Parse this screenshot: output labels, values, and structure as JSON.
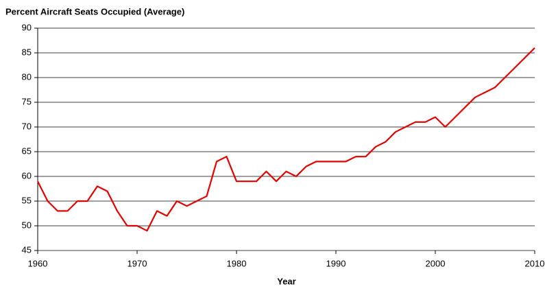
{
  "chart_data": {
    "type": "line",
    "title": "Percent Aircraft Seats Occupied (Average)",
    "x_label": "Year",
    "x": [
      1960,
      1961,
      1962,
      1963,
      1964,
      1965,
      1966,
      1967,
      1968,
      1969,
      1970,
      1971,
      1972,
      1973,
      1974,
      1975,
      1976,
      1977,
      1978,
      1979,
      1980,
      1981,
      1982,
      1983,
      1984,
      1985,
      1986,
      1987,
      1988,
      1989,
      1990,
      1991,
      1992,
      1993,
      1994,
      1995,
      1996,
      1997,
      1998,
      1999,
      2000,
      2001,
      2002,
      2003,
      2004,
      2005,
      2006,
      2007,
      2008,
      2009,
      2010
    ],
    "series": [
      {
        "color": "#e00000",
        "values": [
          59,
          55,
          53,
          53,
          55,
          55,
          58,
          57,
          53,
          50,
          50,
          49,
          53,
          52,
          55,
          54,
          55,
          56,
          63,
          64,
          59,
          59,
          59,
          61,
          59,
          61,
          60,
          62,
          63,
          63,
          63,
          63,
          64,
          64,
          66,
          67,
          69,
          70,
          71,
          71,
          72,
          70,
          72,
          74,
          76,
          77,
          78,
          80,
          82,
          84,
          86
        ]
      }
    ],
    "xlim": [
      1960,
      2010
    ],
    "xticks": [
      1960,
      1970,
      1980,
      1990,
      2000,
      2010
    ],
    "ylim": [
      45,
      90
    ],
    "yticks": [
      45,
      50,
      55,
      60,
      65,
      70,
      75,
      80,
      85,
      90
    ],
    "grid": true
  }
}
